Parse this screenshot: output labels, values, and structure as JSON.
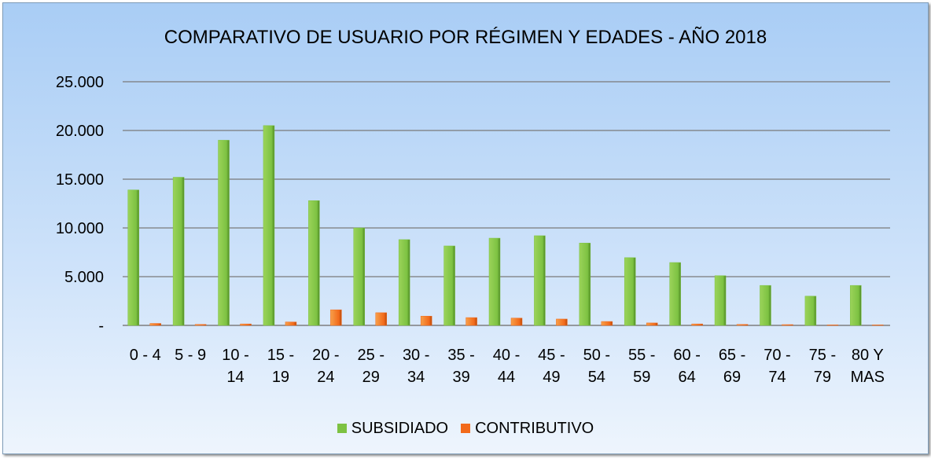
{
  "chart_data": {
    "type": "bar",
    "title": "COMPARATIVO DE USUARIO POR RÉGIMEN Y EDADES - AÑO 2018",
    "categories": [
      "0 - 4",
      "5 - 9",
      "10 - 14",
      "15 - 19",
      "20 - 24",
      "25 - 29",
      "30 - 34",
      "35 - 39",
      "40 - 44",
      "45 - 49",
      "50 - 54",
      "55 - 59",
      "60 - 64",
      "65 - 69",
      "70 - 74",
      "75 - 79",
      "80 Y MAS"
    ],
    "series": [
      {
        "name": "SUBSIDIADO",
        "color": "#7dc242",
        "values": [
          13900,
          15200,
          19000,
          20500,
          12800,
          10000,
          8800,
          8150,
          8950,
          9200,
          8450,
          6950,
          6450,
          5100,
          4100,
          3000,
          4100
        ]
      },
      {
        "name": "CONTRIBUTIVO",
        "color": "#f26a1b",
        "values": [
          200,
          100,
          150,
          350,
          1600,
          1300,
          950,
          800,
          750,
          650,
          400,
          250,
          150,
          100,
          80,
          50,
          50
        ]
      }
    ],
    "ylim": [
      0,
      25000
    ],
    "yticks": [
      {
        "value": 0,
        "label": "-"
      },
      {
        "value": 5000,
        "label": "5.000"
      },
      {
        "value": 10000,
        "label": "10.000"
      },
      {
        "value": 15000,
        "label": "15.000"
      },
      {
        "value": 20000,
        "label": "20.000"
      },
      {
        "value": 25000,
        "label": "25.000"
      }
    ],
    "grid": true
  }
}
